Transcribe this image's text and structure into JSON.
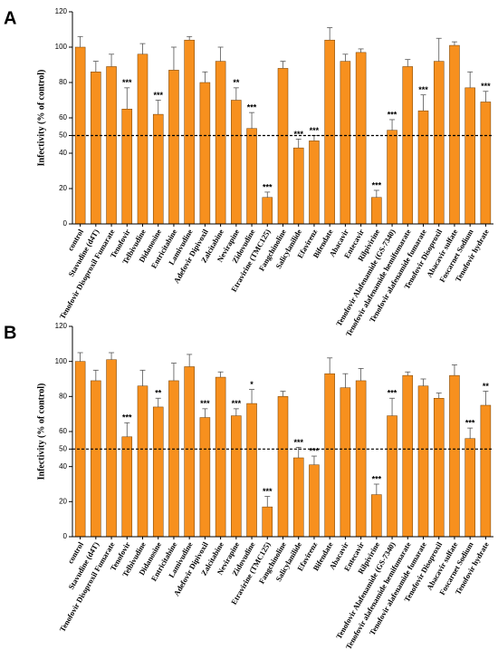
{
  "chart_data": [
    {
      "type": "bar",
      "panel": "A",
      "ylabel": "Infectivity (% of  control)",
      "color": "#f7901e",
      "categories": [
        "control",
        "Stavudine (d4T)",
        "Tenofovir Disoproxil Fumarate",
        "Tenofovir",
        "Telbivudine",
        "Didanosine",
        "Entricitabine",
        "Lamivudine",
        "Adefovir Dipivoxil",
        "Zalcitabine",
        "Nevirapine",
        "Zidovudine",
        "Etravirine (TMC125)",
        "Fangchinoline",
        "Salicylanilide",
        "Efavirenz",
        "Bifendate",
        "Abacavir",
        "Entecavir",
        "Rilpivirine",
        "Tenofovir Alafenamide (GS-7340)",
        "Tenofovir alafenamide hemifumarate",
        "Tenofovir alafenamide fumarate",
        "Tenofovir Disoproxil",
        "Abacavir sulfate",
        "Foscarnet Sodium",
        "Tenofovir hydrate"
      ],
      "values": [
        100,
        86,
        89,
        65,
        96,
        62,
        87,
        104,
        80,
        92,
        70,
        54,
        15,
        88,
        43,
        47,
        104,
        92,
        97,
        15,
        53,
        89,
        64,
        92,
        101,
        77,
        69
      ],
      "errors": [
        6,
        6,
        7,
        12,
        6,
        8,
        13,
        2,
        6,
        8,
        7,
        9,
        3,
        4,
        5,
        3,
        7,
        4,
        2,
        4,
        6,
        4,
        9,
        13,
        2,
        9,
        6
      ],
      "significance": [
        null,
        null,
        null,
        "***",
        null,
        "***",
        null,
        null,
        null,
        null,
        "**",
        "***",
        "***",
        null,
        "***",
        "***",
        null,
        null,
        null,
        "***",
        "***",
        null,
        "***",
        null,
        null,
        null,
        "***"
      ],
      "reference_line": 50,
      "ylim": [
        0,
        120
      ],
      "yticks": [
        0,
        20,
        40,
        50,
        60,
        80,
        100,
        120
      ]
    },
    {
      "type": "bar",
      "panel": "B",
      "ylabel": "Infectivity (% of  control)",
      "color": "#f7901e",
      "categories": [
        "control",
        "Stavudine (d4T)",
        "Tenofovir Disoproxil Fumarate",
        "Tenofovir",
        "Telbivudine",
        "Didanosine",
        "Entricitabine",
        "Lamivudine",
        "Adefovir Dipivoxil",
        "Zalcitabine",
        "Nevirapine",
        "Zidovudine",
        "Etravirine (TMC125)",
        "Fangchinoline",
        "Salicylanilide",
        "Efavirenz",
        "Bifendate",
        "Abacavir",
        "Entecavir",
        "Rilpivirine",
        "Tenofovir Alafenamide (GS-7340)",
        "Tenofovir alafenamide hemifumarate",
        "Tenofovir alafenamide fumarate",
        "Tenofovir Disoproxil",
        "Abacavir sulfate",
        "Foscarnet Sodium",
        "Tenofovir hydrate"
      ],
      "values": [
        100,
        89,
        101,
        57,
        86,
        74,
        89,
        97,
        68,
        91,
        69,
        76,
        17,
        80,
        45,
        41,
        93,
        85,
        89,
        24,
        69,
        92,
        86,
        79,
        92,
        56,
        75
      ],
      "errors": [
        5,
        6,
        4,
        8,
        9,
        5,
        10,
        7,
        5,
        3,
        4,
        8,
        6,
        3,
        6,
        5,
        9,
        8,
        7,
        6,
        10,
        2,
        4,
        3,
        6,
        6,
        8
      ],
      "significance": [
        null,
        null,
        null,
        "***",
        null,
        "**",
        null,
        null,
        "***",
        null,
        "***",
        "*",
        "***",
        null,
        "***",
        "***",
        null,
        null,
        null,
        "***",
        "***",
        null,
        null,
        null,
        null,
        "***",
        "**"
      ],
      "reference_line": 50,
      "ylim": [
        0,
        120
      ],
      "yticks": [
        0,
        20,
        40,
        50,
        60,
        80,
        100,
        120
      ]
    }
  ]
}
